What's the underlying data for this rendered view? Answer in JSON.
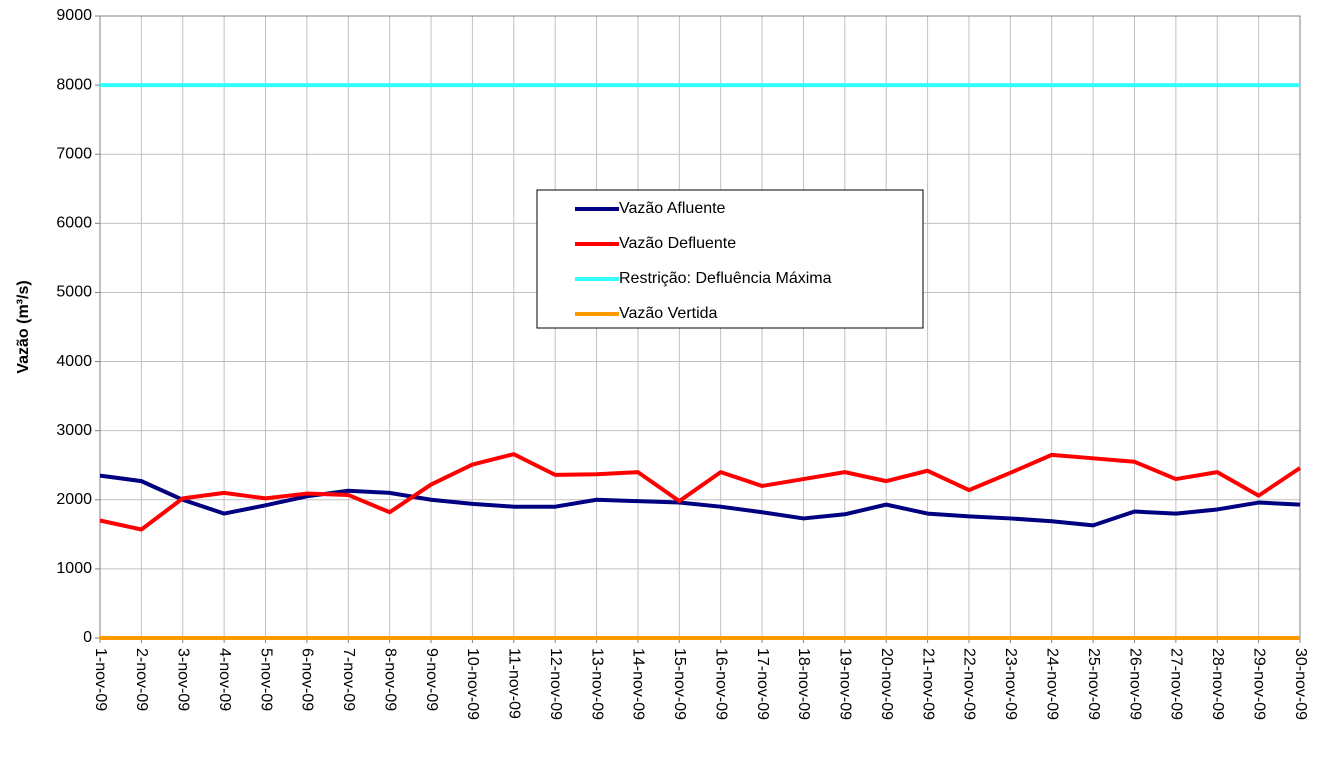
{
  "chart_data": {
    "type": "line",
    "y_label": "Vazão (m³/s)",
    "categories": [
      "1-nov-09",
      "2-nov-09",
      "3-nov-09",
      "4-nov-09",
      "5-nov-09",
      "6-nov-09",
      "7-nov-09",
      "8-nov-09",
      "9-nov-09",
      "10-nov-09",
      "11-nov-09",
      "12-nov-09",
      "13-nov-09",
      "14-nov-09",
      "15-nov-09",
      "16-nov-09",
      "17-nov-09",
      "18-nov-09",
      "19-nov-09",
      "20-nov-09",
      "21-nov-09",
      "22-nov-09",
      "23-nov-09",
      "24-nov-09",
      "25-nov-09",
      "26-nov-09",
      "27-nov-09",
      "28-nov-09",
      "29-nov-09",
      "30-nov-09"
    ],
    "series": [
      {
        "name": "Vazão Afluente",
        "color": "#000080",
        "values": [
          2350,
          2270,
          2000,
          1800,
          1920,
          2050,
          2130,
          2100,
          2000,
          1940,
          1900,
          1900,
          2000,
          1980,
          1960,
          1900,
          1820,
          1730,
          1790,
          1930,
          1800,
          1760,
          1730,
          1690,
          1630,
          1830,
          1800,
          1860,
          1960,
          1930
        ]
      },
      {
        "name": "Vazão Defluente",
        "color": "#ff0000",
        "values": [
          1700,
          1570,
          2020,
          2100,
          2020,
          2090,
          2070,
          1820,
          2220,
          2510,
          2660,
          2360,
          2370,
          2400,
          1980,
          2400,
          2200,
          2300,
          2400,
          2270,
          2420,
          2140,
          2390,
          2650,
          2600,
          2550,
          2300,
          2400,
          2060,
          2460
        ]
      },
      {
        "name": "Restrição: Defluência Máxima",
        "color": "#33ffff",
        "values": [
          8000,
          8000,
          8000,
          8000,
          8000,
          8000,
          8000,
          8000,
          8000,
          8000,
          8000,
          8000,
          8000,
          8000,
          8000,
          8000,
          8000,
          8000,
          8000,
          8000,
          8000,
          8000,
          8000,
          8000,
          8000,
          8000,
          8000,
          8000,
          8000,
          8000
        ]
      },
      {
        "name": "Vazão Vertida",
        "color": "#ff9900",
        "values": [
          0,
          0,
          0,
          0,
          0,
          0,
          0,
          0,
          0,
          0,
          0,
          0,
          0,
          0,
          0,
          0,
          0,
          0,
          0,
          0,
          0,
          0,
          0,
          0,
          0,
          0,
          0,
          0,
          0,
          0
        ]
      }
    ],
    "ylim": [
      0,
      9000
    ],
    "yticks": [
      0,
      1000,
      2000,
      3000,
      4000,
      5000,
      6000,
      7000,
      8000,
      9000
    ],
    "grid": true
  }
}
